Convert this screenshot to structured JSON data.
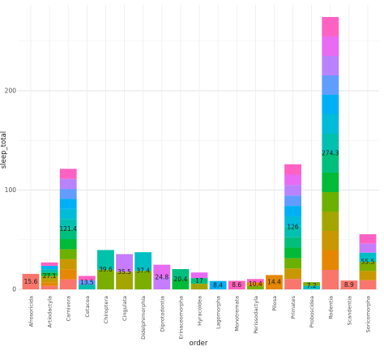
{
  "chart_data": {
    "type": "bar",
    "stacked": true,
    "xlabel": "order",
    "ylabel": "sleep_total",
    "ylim": [
      0,
      280
    ],
    "yticks": [
      0,
      100,
      200
    ],
    "grid": true,
    "legend": "none",
    "categories": [
      "Afrosoricida",
      "Artiodactyla",
      "Carnivora",
      "Cetacea",
      "Chiroptera",
      "Cingulata",
      "Didelphimorphia",
      "Diprotodontia",
      "Erinaceomorpha",
      "Hyracoidea",
      "Lagomorpha",
      "Monotremata",
      "Perissodactyla",
      "Pilosa",
      "Primates",
      "Proboscidea",
      "Rodentia",
      "Scandentia",
      "Soricomorpha"
    ],
    "values": [
      15.6,
      27.1,
      121.4,
      13.5,
      39.6,
      35.5,
      37.4,
      24.8,
      20.4,
      17,
      8.4,
      8.6,
      10.4,
      14.4,
      126,
      7.2,
      274.3,
      8.9,
      55.5
    ],
    "data_labels": [
      "15.6",
      "27.1",
      "121.4",
      "13.5",
      "39.6",
      "35.5",
      "37.4",
      "24.8",
      "20.4",
      "17",
      "8.4",
      "8.6",
      "10.4",
      "14.4",
      "126",
      "7.2",
      "274.3",
      "8.9",
      "55.5"
    ],
    "colors": {
      "Afrosoricida": [
        "#F8766D"
      ],
      "Artiodactyla": [
        "#F8766D",
        "#E58700",
        "#C99800",
        "#A3A500",
        "#00BA38",
        "#00C0AF",
        "#00B0F6",
        "#FF61C3"
      ],
      "Carnivora": [
        "#F8766D",
        "#E58700",
        "#C99800",
        "#6BB100",
        "#00BA38",
        "#00BF7D",
        "#00C0AF",
        "#00BCD8",
        "#00B0F6",
        "#619CFF",
        "#B983FF",
        "#FF61C3"
      ],
      "Cetacea": [
        "#00C0AF",
        "#619CFF",
        "#FF61C3"
      ],
      "Chiroptera": [
        "#7CAE00",
        "#00C1AA"
      ],
      "Cingulata": [
        "#A3A500",
        "#C77CFF"
      ],
      "Didelphimorphia": [
        "#7CAE00",
        "#00BFC4"
      ],
      "Diprotodontia": [
        "#C77CFF",
        "#E76BF3"
      ],
      "Erinaceomorpha": [
        "#00BA38",
        "#00BF7D"
      ],
      "Hyracoidea": [
        "#A3A500",
        "#00BF7D",
        "#E76BF3"
      ],
      "Lagomorpha": [
        "#00B0F6"
      ],
      "Monotremata": [
        "#FF62BC"
      ],
      "Perissodactyla": [
        "#7CAE00",
        "#E58700",
        "#FF61C3"
      ],
      "Pilosa": [
        "#E58700"
      ],
      "Primates": [
        "#F8766D",
        "#C99800",
        "#6BB100",
        "#00BA38",
        "#00BF7D",
        "#00C0AF",
        "#00BCD8",
        "#00B0F6",
        "#619CFF",
        "#B983FF",
        "#E76BF3",
        "#FF61C3"
      ],
      "Proboscidea": [
        "#00BFC4",
        "#7CAE00"
      ],
      "Rodentia": [
        "#F8766D",
        "#E58700",
        "#C99800",
        "#A3A500",
        "#6BB100",
        "#00BA38",
        "#00BF7D",
        "#00C0AF",
        "#00BCD8",
        "#00B0F6",
        "#619CFF",
        "#B983FF",
        "#E76BF3",
        "#FF61C3"
      ],
      "Scandentia": [
        "#F8766D"
      ],
      "Soricomorpha": [
        "#F8766D",
        "#C99800",
        "#7CAE00",
        "#00BFC4",
        "#C77CFF",
        "#FF61C3"
      ]
    }
  }
}
